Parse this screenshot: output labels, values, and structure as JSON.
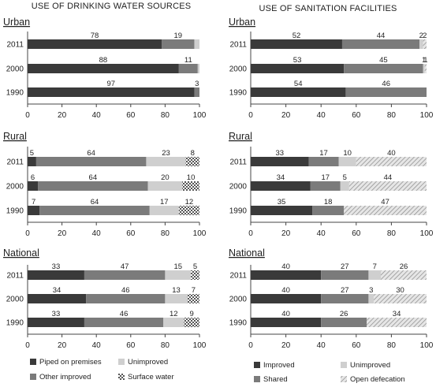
{
  "chart_data": [
    {
      "type": "bar",
      "orientation": "horizontal",
      "stacked": true,
      "title": "USE OF DRINKING WATER SOURCES",
      "xlim": [
        0,
        100
      ],
      "x_ticks": [
        0,
        20,
        40,
        60,
        80,
        100
      ],
      "series": [
        {
          "key": "piped",
          "name": "Piped on premises",
          "color": "#3a3a3a",
          "pattern": "solid"
        },
        {
          "key": "other",
          "name": "Other improved",
          "color": "#7b7b7b",
          "pattern": "solid"
        },
        {
          "key": "unimp",
          "name": "Unimproved",
          "color": "#cfcfcf",
          "pattern": "solid"
        },
        {
          "key": "surface",
          "name": "Surface water",
          "color": "#9a9a9a",
          "pattern": "checker"
        }
      ],
      "groups": [
        {
          "name": "Urban",
          "rows": [
            {
              "year": "2011",
              "values": [
                78,
                19,
                3,
                0
              ],
              "labels": [
                "78",
                "19",
                "",
                ""
              ]
            },
            {
              "year": "2000",
              "values": [
                88,
                11,
                1,
                0
              ],
              "labels": [
                "88",
                "11",
                "",
                ""
              ]
            },
            {
              "year": "1990",
              "values": [
                97,
                3,
                0,
                0
              ],
              "labels": [
                "97",
                "3",
                "",
                ""
              ]
            }
          ]
        },
        {
          "name": "Rural",
          "rows": [
            {
              "year": "2011",
              "values": [
                5,
                64,
                23,
                8
              ],
              "labels": [
                "5",
                "64",
                "23",
                "8"
              ]
            },
            {
              "year": "2000",
              "values": [
                6,
                64,
                20,
                10
              ],
              "labels": [
                "6",
                "64",
                "20",
                "10"
              ]
            },
            {
              "year": "1990",
              "values": [
                7,
                64,
                17,
                12
              ],
              "labels": [
                "7",
                "64",
                "17",
                "12"
              ]
            }
          ]
        },
        {
          "name": "National",
          "rows": [
            {
              "year": "2011",
              "values": [
                33,
                47,
                15,
                5
              ],
              "labels": [
                "33",
                "47",
                "15",
                "5"
              ]
            },
            {
              "year": "2000",
              "values": [
                34,
                46,
                13,
                7
              ],
              "labels": [
                "34",
                "46",
                "13",
                "7"
              ]
            },
            {
              "year": "1990",
              "values": [
                33,
                46,
                12,
                9
              ],
              "labels": [
                "33",
                "46",
                "12",
                "9"
              ]
            }
          ]
        }
      ]
    },
    {
      "type": "bar",
      "orientation": "horizontal",
      "stacked": true,
      "title": "USE OF SANITATION FACILITIES",
      "xlim": [
        0,
        100
      ],
      "x_ticks": [
        0,
        20,
        40,
        60,
        80,
        100
      ],
      "series": [
        {
          "key": "improved",
          "name": "Improved",
          "color": "#3a3a3a",
          "pattern": "solid"
        },
        {
          "key": "shared",
          "name": "Shared",
          "color": "#7b7b7b",
          "pattern": "solid"
        },
        {
          "key": "unimp",
          "name": "Unimproved",
          "color": "#cfcfcf",
          "pattern": "solid"
        },
        {
          "key": "open",
          "name": "Open defecation",
          "color": "#bdbdbd",
          "pattern": "hatch"
        }
      ],
      "groups": [
        {
          "name": "Urban",
          "rows": [
            {
              "year": "2011",
              "values": [
                52,
                44,
                2,
                2
              ],
              "labels": [
                "52",
                "44",
                "2",
                "2"
              ]
            },
            {
              "year": "2000",
              "values": [
                53,
                45,
                1,
                1
              ],
              "labels": [
                "53",
                "45",
                "1",
                "1"
              ]
            },
            {
              "year": "1990",
              "values": [
                54,
                46,
                0,
                0
              ],
              "labels": [
                "54",
                "46",
                "",
                ""
              ]
            }
          ]
        },
        {
          "name": "Rural",
          "rows": [
            {
              "year": "2011",
              "values": [
                33,
                17,
                10,
                40
              ],
              "labels": [
                "33",
                "17",
                "10",
                "40"
              ]
            },
            {
              "year": "2000",
              "values": [
                34,
                17,
                5,
                44
              ],
              "labels": [
                "34",
                "17",
                "5",
                "44"
              ]
            },
            {
              "year": "1990",
              "values": [
                35,
                18,
                0,
                47
              ],
              "labels": [
                "35",
                "18",
                "",
                "47"
              ]
            }
          ]
        },
        {
          "name": "National",
          "rows": [
            {
              "year": "2011",
              "values": [
                40,
                27,
                7,
                26
              ],
              "labels": [
                "40",
                "27",
                "7",
                "26"
              ]
            },
            {
              "year": "2000",
              "values": [
                40,
                27,
                3,
                30
              ],
              "labels": [
                "40",
                "27",
                "3",
                "30"
              ]
            },
            {
              "year": "1990",
              "values": [
                40,
                26,
                0,
                34
              ],
              "labels": [
                "40",
                "26",
                "",
                "34"
              ]
            }
          ]
        }
      ]
    }
  ]
}
